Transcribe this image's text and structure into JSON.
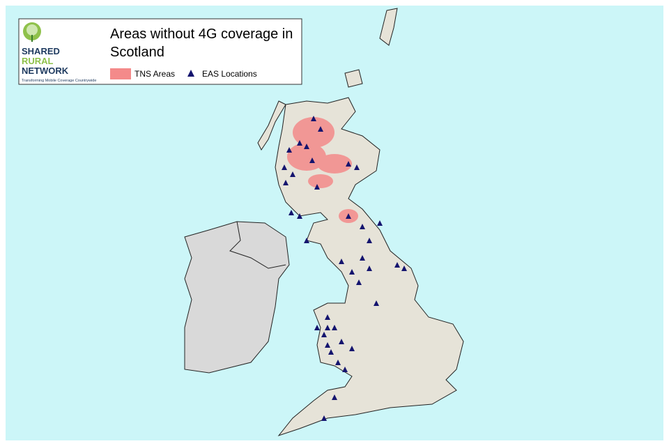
{
  "logo": {
    "line1": "SHARED",
    "line2": "RURAL",
    "line3": "NETWORK",
    "tagline": "Transforming Mobile Coverage Countrywide"
  },
  "title": "Areas without 4G coverage in Scotland",
  "legend": {
    "tns": "TNS Areas",
    "eas": "EAS Locations"
  }
}
